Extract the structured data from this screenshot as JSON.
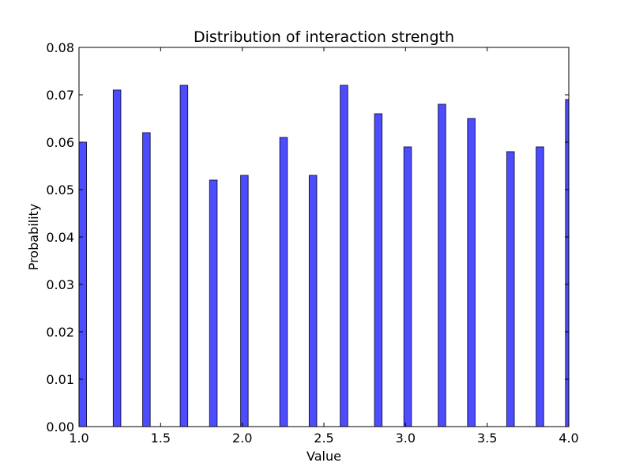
{
  "chart_data": {
    "type": "bar",
    "title": "Distribution of interaction strength",
    "xlabel": "Value",
    "ylabel": "Probability",
    "xlim": [
      1.0,
      4.0
    ],
    "ylim": [
      0.0,
      0.08
    ],
    "xticks": [
      "1.0",
      "1.5",
      "2.0",
      "2.5",
      "3.0",
      "3.5",
      "4.0"
    ],
    "yticks": [
      "0.00",
      "0.01",
      "0.02",
      "0.03",
      "0.04",
      "0.05",
      "0.06",
      "0.07",
      "0.08"
    ],
    "grid": false,
    "bar_color": "#4d4dff",
    "bar_edge_color": "#1a1a4d",
    "x": [
      1.0,
      1.21,
      1.39,
      1.62,
      1.8,
      1.99,
      2.23,
      2.41,
      2.6,
      2.81,
      2.99,
      3.2,
      3.38,
      3.62,
      3.8,
      3.98
    ],
    "values": [
      0.06,
      0.071,
      0.062,
      0.072,
      0.052,
      0.053,
      0.061,
      0.053,
      0.072,
      0.066,
      0.059,
      0.068,
      0.065,
      0.058,
      0.059,
      0.069
    ],
    "bar_width": 0.046
  }
}
